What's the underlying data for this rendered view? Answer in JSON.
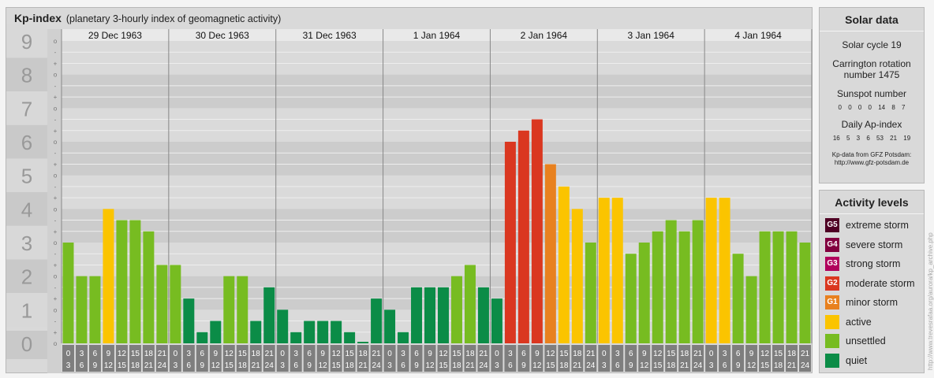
{
  "header": {
    "title": "Kp-index",
    "subtitle": "(planetary 3-hourly index of geomagnetic activity)"
  },
  "chart_data": {
    "type": "bar",
    "ylim": [
      0,
      9
    ],
    "y_ticks": [
      "0",
      "1",
      "2",
      "3",
      "4",
      "5",
      "6",
      "7",
      "8",
      "9"
    ],
    "minor_tick_labels": [
      "o",
      "+",
      "-"
    ],
    "days": [
      "29 Dec 1963",
      "30 Dec 1963",
      "31 Dec 1963",
      "1 Jan 1964",
      "2 Jan 1964",
      "3 Jan 1964",
      "4 Jan 1964"
    ],
    "interval_start": [
      "0",
      "3",
      "6",
      "9",
      "12",
      "15",
      "18",
      "21"
    ],
    "interval_end": [
      "3",
      "6",
      "9",
      "12",
      "15",
      "18",
      "21",
      "24"
    ],
    "values": [
      3.0,
      2.0,
      2.0,
      4.0,
      3.667,
      3.667,
      3.333,
      2.333,
      2.333,
      1.333,
      0.333,
      0.667,
      2.0,
      2.0,
      0.667,
      1.667,
      1.0,
      0.333,
      0.667,
      0.667,
      0.667,
      0.333,
      0.0,
      1.333,
      1.0,
      0.333,
      1.667,
      1.667,
      1.667,
      2.0,
      2.333,
      1.667,
      1.333,
      6.0,
      6.333,
      6.667,
      5.333,
      4.667,
      4.0,
      3.0,
      4.333,
      4.333,
      2.667,
      3.0,
      3.333,
      3.667,
      3.333,
      3.667,
      4.333,
      4.333,
      2.667,
      2.0,
      3.333,
      3.333,
      3.333,
      3.0
    ],
    "level_colors": {
      "quiet": "#0b8c47",
      "unsettled": "#77bc21",
      "active": "#fbc400",
      "G1": "#e8811f",
      "G2": "#da3720",
      "G3": "#b1005c",
      "G4": "#82003f",
      "G5": "#4f0024"
    }
  },
  "solar": {
    "title": "Solar data",
    "cycle": "Solar cycle 19",
    "carrington": "Carrington rotation number 1475",
    "sunspot_title": "Sunspot number",
    "sunspot_values": "0 0 0 0 14 8 7",
    "ap_title": "Daily Ap-index",
    "ap_values": "16 5 3 6 53 21 19",
    "credit_1": "Kp-data from GFZ Potsdam:",
    "credit_2": "http://www.gfz-potsdam.de"
  },
  "activity": {
    "title": "Activity levels",
    "items": [
      {
        "badge": "G5",
        "label": "extreme storm",
        "color": "#4f0024"
      },
      {
        "badge": "G4",
        "label": "severe storm",
        "color": "#82003f"
      },
      {
        "badge": "G3",
        "label": "strong storm",
        "color": "#b1005c"
      },
      {
        "badge": "G2",
        "label": "moderate storm",
        "color": "#da3720"
      },
      {
        "badge": "G1",
        "label": "minor storm",
        "color": "#e8811f"
      },
      {
        "badge": "",
        "label": "active",
        "color": "#fbc400"
      },
      {
        "badge": "",
        "label": "unsettled",
        "color": "#77bc21"
      },
      {
        "badge": "",
        "label": "quiet",
        "color": "#0b8c47"
      }
    ]
  },
  "side_text": "http://www.trevesrafaa.org/aurora/kp_archive.php"
}
